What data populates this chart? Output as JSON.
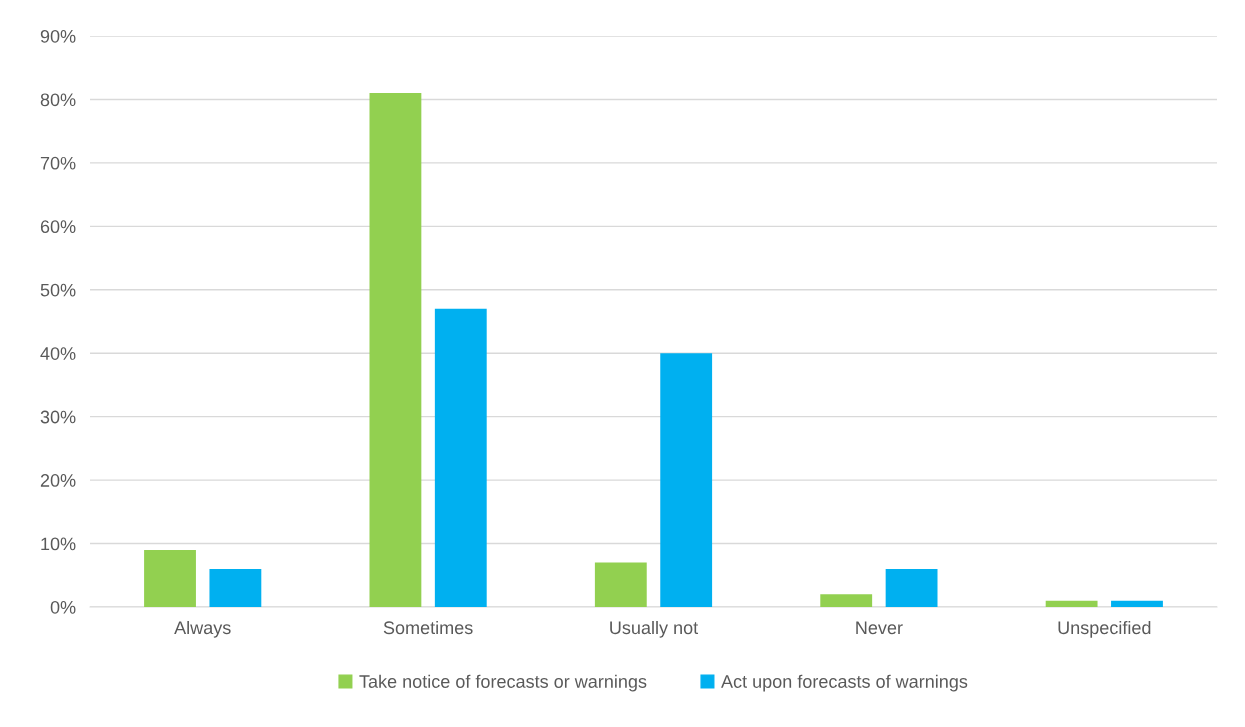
{
  "chart_data": {
    "type": "bar",
    "categories": [
      "Always",
      "Sometimes",
      "Usually not",
      "Never",
      "Unspecified"
    ],
    "series": [
      {
        "name": "Take notice of forecasts or warnings",
        "color": "#92d050",
        "values": [
          9,
          81,
          7,
          2,
          1
        ]
      },
      {
        "name": "Act upon forecasts of warnings",
        "color": "#00b0f0",
        "values": [
          6,
          47,
          40,
          6,
          1
        ]
      }
    ],
    "ylim": [
      0,
      90
    ],
    "yticks": [
      {
        "value": 0,
        "label": "0%"
      },
      {
        "value": 10,
        "label": "10%"
      },
      {
        "value": 20,
        "label": "20%"
      },
      {
        "value": 30,
        "label": "30%"
      },
      {
        "value": 40,
        "label": "40%"
      },
      {
        "value": 50,
        "label": "50%"
      },
      {
        "value": 60,
        "label": "60%"
      },
      {
        "value": 70,
        "label": "70%"
      },
      {
        "value": 80,
        "label": "80%"
      },
      {
        "value": 90,
        "label": "90%"
      }
    ],
    "grid": "y",
    "legend": "bottom"
  }
}
